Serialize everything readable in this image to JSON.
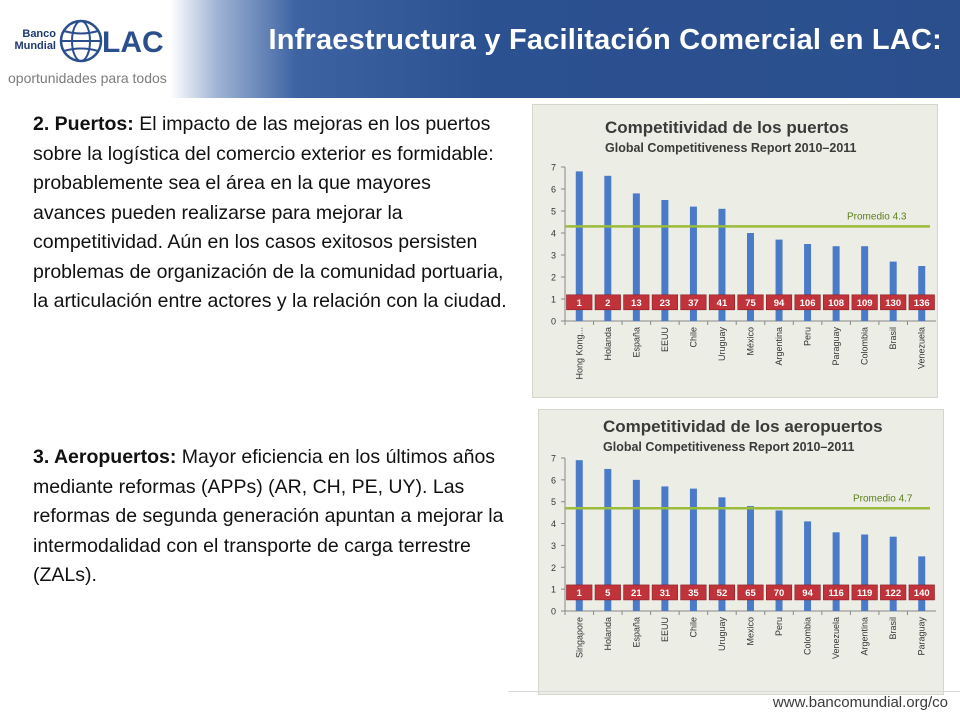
{
  "header": {
    "title": "Infraestructura y Facilitación Comercial en LAC:",
    "logo": {
      "line1": "Banco",
      "line2": "Mundial",
      "brand": "LAC",
      "tagline": "oportunidades para todos"
    }
  },
  "body": {
    "section2": {
      "heading": "2. Puertos:",
      "text": " El impacto de las mejoras en los puertos sobre la logística del comercio exterior es formidable: probablemente sea el área en la que mayores avances pueden realizarse para mejorar la competitividad. Aún en los casos exitosos persisten problemas de organización de la comunidad portuaria, la articulación entre actores y la relación con la ciudad."
    },
    "section3": {
      "heading": "3. Aeropuertos:",
      "text": " Mayor eficiencia en los últimos años mediante reformas (APPs) (AR, CH, PE, UY). Las reformas de segunda generación apuntan a mejorar la intermodalidad con el transporte de carga terrestre (ZALs)."
    }
  },
  "footer": {
    "url": "www.bancomundial.org/co"
  },
  "colors": {
    "bar": "#4a7ac8",
    "average_line": "#9bbb3a",
    "rank_box": "#c0333b",
    "header_blue": "#2b4f8d"
  },
  "chart_data": [
    {
      "type": "bar",
      "title": "Competitividad de los puertos",
      "subtitle": "Global Competitiveness Report 2010–2011",
      "categories": [
        "Hong Kong",
        "Holanda",
        "España",
        "EEUU",
        "Chile",
        "Uruguay",
        "México",
        "Argentina",
        "Peru",
        "Paraguay",
        "Colombia",
        "Brasil",
        "Venezuela"
      ],
      "values": [
        6.8,
        6.6,
        5.8,
        5.5,
        5.2,
        5.1,
        4.0,
        3.7,
        3.5,
        3.4,
        3.4,
        2.7,
        2.5
      ],
      "ranks": [
        "1",
        "2",
        "13",
        "23",
        "37",
        "41",
        "75",
        "94",
        "106",
        "108",
        "109",
        "130",
        "136"
      ],
      "average": 4.3,
      "average_label": "Promedio 4.3",
      "ylim": [
        0,
        7
      ],
      "yticks": [
        "0",
        "1",
        "2",
        "3",
        "4",
        "5",
        "6",
        "7"
      ],
      "category_labels": [
        "Hong Kong...",
        "Holanda",
        "España",
        "EEUU",
        "Chile",
        "Uruguay",
        "México",
        "Argentina",
        "Peru",
        "Paraguay",
        "Colombia",
        "Brasil",
        "Venezuela"
      ]
    },
    {
      "type": "bar",
      "title": "Competitividad de los aeropuertos",
      "subtitle": "Global Competitiveness Report 2010–2011",
      "categories": [
        "Singapore",
        "Holanda",
        "España",
        "EEUU",
        "Chile",
        "Uruguay",
        "México",
        "Peru",
        "Colombia",
        "Venezuela",
        "Argentina",
        "Brasil",
        "Paraguay"
      ],
      "values": [
        6.9,
        6.5,
        6.0,
        5.7,
        5.6,
        5.2,
        4.8,
        4.6,
        4.1,
        3.6,
        3.5,
        3.4,
        2.5
      ],
      "ranks": [
        "1",
        "5",
        "21",
        "31",
        "35",
        "52",
        "65",
        "70",
        "94",
        "116",
        "119",
        "122",
        "140"
      ],
      "average": 4.7,
      "average_label": "Promedio 4.7",
      "ylim": [
        0,
        7
      ],
      "yticks": [
        "0",
        "1",
        "2",
        "3",
        "4",
        "5",
        "6",
        "7"
      ],
      "category_labels": [
        "Singapore",
        "Holanda",
        "España",
        "EEUU",
        "Chile",
        "Uruguay",
        "Mexico",
        "Peru",
        "Colombia",
        "Venezuela",
        "Argentina",
        "Brasil",
        "Paraguay"
      ]
    }
  ]
}
